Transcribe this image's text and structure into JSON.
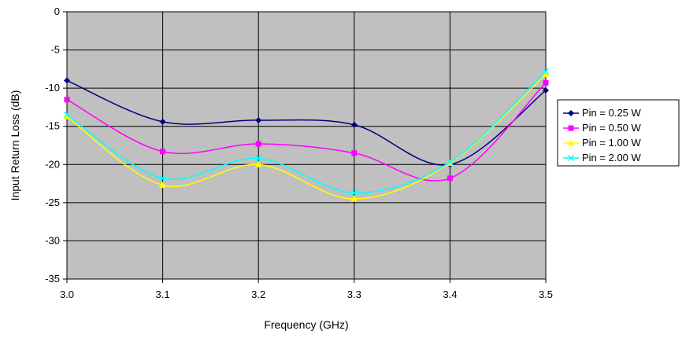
{
  "chart_data": {
    "type": "line",
    "title": "",
    "xlabel": "Frequency (GHz)",
    "ylabel": "Input Return Loss (dB)",
    "xlim": [
      3.0,
      3.5
    ],
    "ylim": [
      -35,
      0
    ],
    "x_ticks": [
      "3.0",
      "3.1",
      "3.2",
      "3.3",
      "3.4",
      "3.5"
    ],
    "y_ticks": [
      "0",
      "-5",
      "-10",
      "-15",
      "-20",
      "-25",
      "-30",
      "-35"
    ],
    "grid": true,
    "legend_position": "right",
    "plot_background": "#c0c0c0",
    "x": [
      3.0,
      3.1,
      3.2,
      3.3,
      3.4,
      3.5
    ],
    "series": [
      {
        "name": "Pin = 0.25 W",
        "color": "#000080",
        "marker": "diamond",
        "values": [
          -9.0,
          -14.4,
          -14.2,
          -14.8,
          -20.0,
          -10.3
        ]
      },
      {
        "name": "Pin = 0.50 W",
        "color": "#ff00ff",
        "marker": "square",
        "values": [
          -11.5,
          -18.3,
          -17.3,
          -18.5,
          -21.8,
          -9.3
        ]
      },
      {
        "name": "Pin = 1.00 W",
        "color": "#ffff00",
        "marker": "triangle",
        "values": [
          -13.7,
          -22.7,
          -20.0,
          -24.5,
          -19.8,
          -8.2
        ]
      },
      {
        "name": "Pin = 2.00 W",
        "color": "#00ffff",
        "marker": "x",
        "values": [
          -13.5,
          -21.8,
          -19.2,
          -23.7,
          -19.7,
          -7.8
        ]
      }
    ]
  }
}
